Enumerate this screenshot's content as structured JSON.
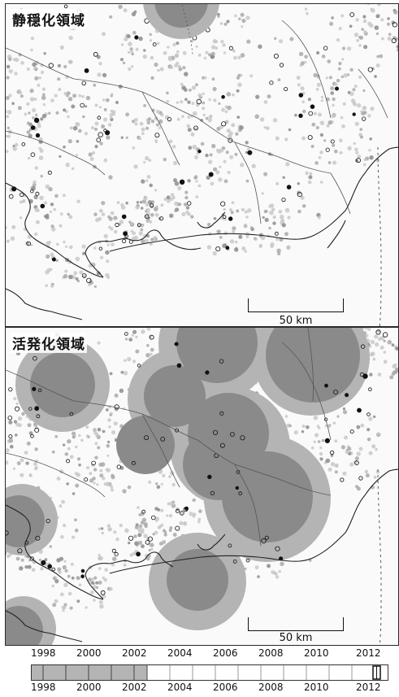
{
  "top_panel": {
    "title": "静穏化領域"
  },
  "bottom_panel": {
    "title": "活発化領域"
  },
  "scale": {
    "label": "50 km"
  },
  "timeline": {
    "ticks": [
      "1998",
      "2000",
      "2002",
      "2004",
      "2006",
      "2008",
      "2010",
      "2012"
    ],
    "years": [
      "1998",
      "2000",
      "2002",
      "2004",
      "2006",
      "2008",
      "2010",
      "2012"
    ],
    "shaded_until": "2002"
  },
  "colors": {
    "zone_inner": "#8a8a8a",
    "zone_outer": "#b4b4b4",
    "coast": "#222222",
    "border": "#555555"
  }
}
